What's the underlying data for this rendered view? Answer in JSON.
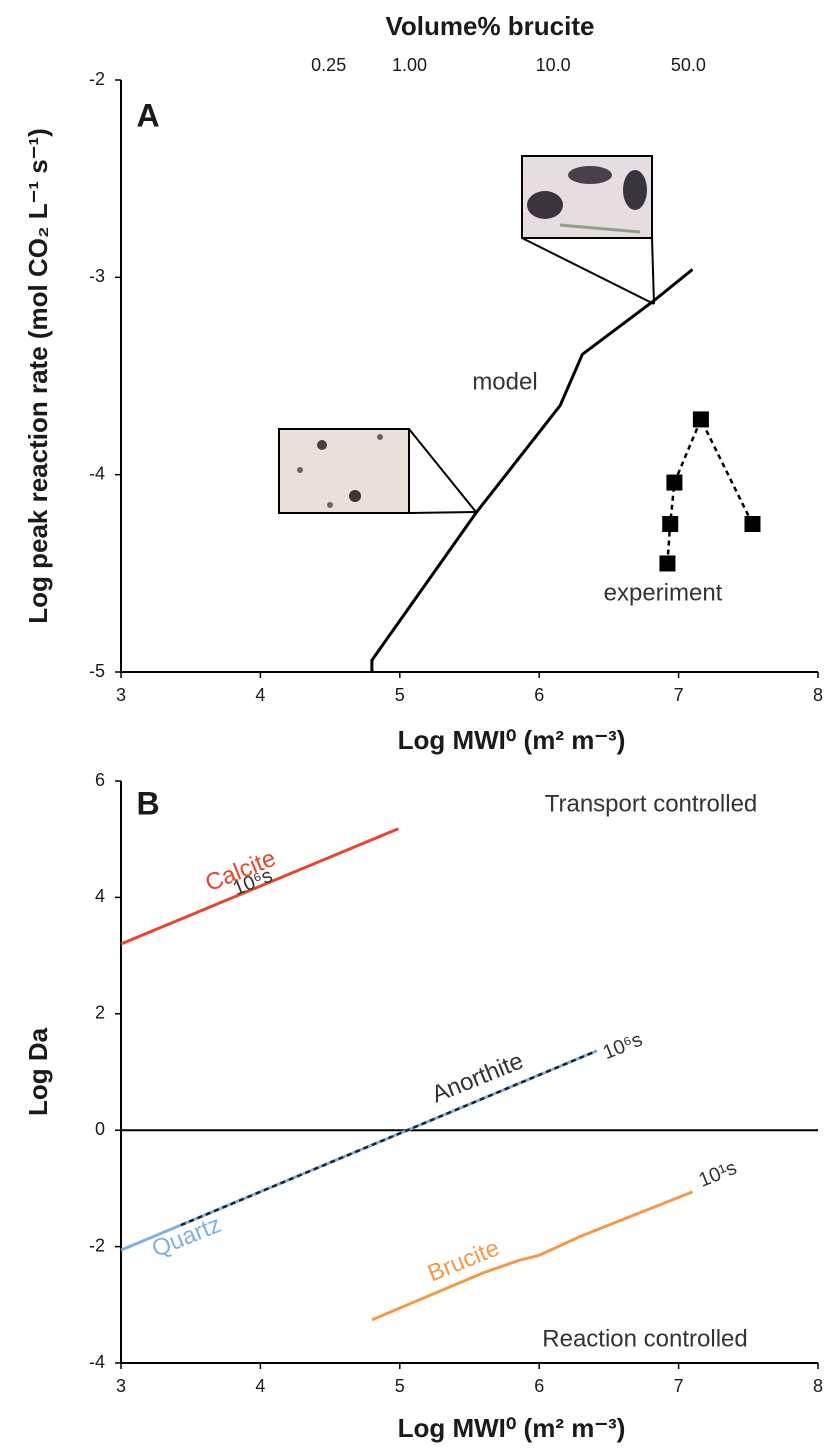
{
  "chart_data": [
    {
      "type": "line",
      "panel_label": "A",
      "x2label": "Volume% brucite",
      "xlabel": "Log MWI⁰ (m² m⁻³)",
      "ylabel": "Log peak reaction rate (mol CO₂ L⁻¹ s⁻¹)",
      "xlim": [
        3,
        8
      ],
      "xticks": [
        3,
        4,
        5,
        6,
        7,
        8
      ],
      "x2ticks": [
        {
          "value": 4.49,
          "label": "0.25"
        },
        {
          "value": 5.07,
          "label": "1.00"
        },
        {
          "value": 6.1,
          "label": "10.0"
        },
        {
          "value": 7.07,
          "label": "50.0"
        }
      ],
      "ylim": [
        -5,
        -2
      ],
      "yticks": [
        -5,
        -4,
        -3,
        -2
      ],
      "series": [
        {
          "name": "model",
          "color": "#000000",
          "x": [
            4.8,
            4.8,
            5.55,
            6.15,
            6.31,
            6.82,
            7.1
          ],
          "values": [
            -5,
            -4.94,
            -4.19,
            -3.65,
            -3.39,
            -3.12,
            -2.96
          ]
        },
        {
          "name": "experiment",
          "color": "#000000",
          "dash": true,
          "marker": "square",
          "x": [
            6.92,
            6.94,
            6.97,
            7.16,
            7.53
          ],
          "values": [
            -4.45,
            -4.25,
            -4.04,
            -3.72,
            -4.25
          ]
        }
      ]
    },
    {
      "type": "line",
      "panel_label": "B",
      "xlabel": "Log MWI⁰ (m² m⁻³)",
      "ylabel": "Log Da",
      "xlim": [
        3,
        8
      ],
      "xticks": [
        3,
        4,
        5,
        6,
        7,
        8
      ],
      "ylim": [
        -4,
        6
      ],
      "yticks": [
        -4,
        -2,
        0,
        2,
        4,
        6
      ],
      "zero_line": true,
      "annotations": [
        "Transport controlled",
        "Reaction controlled",
        "10⁶s",
        "10⁶s",
        "10¹s"
      ],
      "series": [
        {
          "name": "Calcite",
          "color": "#e8452c",
          "x": [
            3,
            4.99
          ],
          "values": [
            3.2,
            5.18
          ]
        },
        {
          "name": "Quartz",
          "color": "#7fb2e0",
          "x": [
            3,
            6.41
          ],
          "values": [
            -2.06,
            1.36
          ]
        },
        {
          "name": "Anorthite",
          "color": "#222222",
          "dash": true,
          "x": [
            3.43,
            6.41
          ],
          "values": [
            -1.63,
            1.36
          ]
        },
        {
          "name": "Brucite",
          "color": "#f29a4a",
          "x": [
            4.8,
            5.6,
            5.85,
            6.0,
            6.3,
            7.1
          ],
          "values": [
            -3.26,
            -2.45,
            -2.24,
            -2.15,
            -1.82,
            -1.06
          ]
        }
      ]
    }
  ]
}
